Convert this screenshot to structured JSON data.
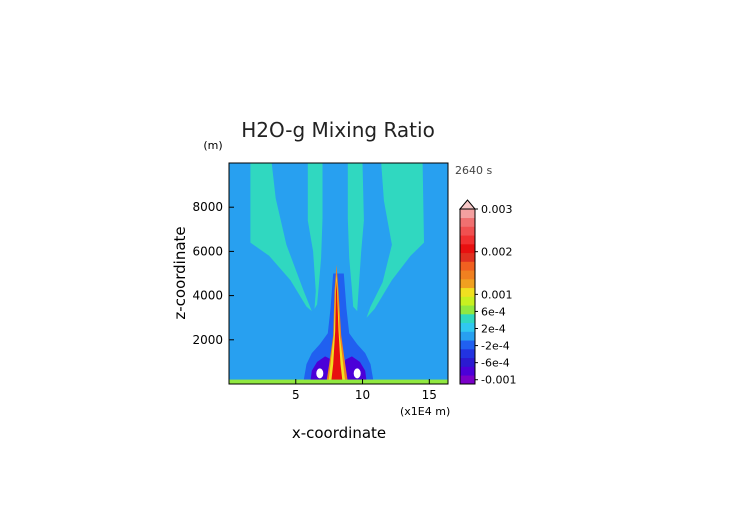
{
  "chart_data": {
    "type": "heatmap",
    "title": "H2O-g Mixing Ratio",
    "time_label": "2640 s",
    "z_unit_label": "(m)",
    "x_unit_label": "(x1E4 m)",
    "xlabel": "x-coordinate",
    "ylabel": "z-coordinate",
    "xlim": [
      0,
      16.4
    ],
    "ylim": [
      0,
      10000
    ],
    "x_ticks": [
      5,
      10,
      15
    ],
    "y_ticks": [
      2000,
      4000,
      6000,
      8000
    ],
    "colorbar": {
      "labels": [
        {
          "text": "0.003",
          "value": 0.003
        },
        {
          "text": "0.002",
          "value": 0.002
        },
        {
          "text": "0.001",
          "value": 0.001
        },
        {
          "text": "6e-4",
          "value": 0.0006
        },
        {
          "text": "2e-4",
          "value": 0.0002
        },
        {
          "text": "-2e-4",
          "value": -0.0002
        },
        {
          "text": "-6e-4",
          "value": -0.0006
        },
        {
          "text": "-0.001",
          "value": -0.001
        }
      ],
      "colors": [
        "#7a00c8",
        "#4b00d8",
        "#2b1ad0",
        "#2233e0",
        "#2060f0",
        "#28a0f0",
        "#30c8f0",
        "#30d8c0",
        "#90e840",
        "#c8f020",
        "#f0e020",
        "#f0a020",
        "#f08020",
        "#f06020",
        "#e03020",
        "#e81010",
        "#f03030",
        "#f05050",
        "#f07070",
        "#f4a0a0"
      ],
      "top_triangle_color": "#f8c8c8"
    },
    "background_color": "#28a0f0",
    "plume_colors": {
      "background": "#28a0f0",
      "moist_band": "#30d8c0",
      "dry_region": "#2060f0",
      "very_dry": "#4b00d8",
      "core_high": "#e81010",
      "core_mid": "#f0e020",
      "surface_layer": "#90e840"
    }
  }
}
